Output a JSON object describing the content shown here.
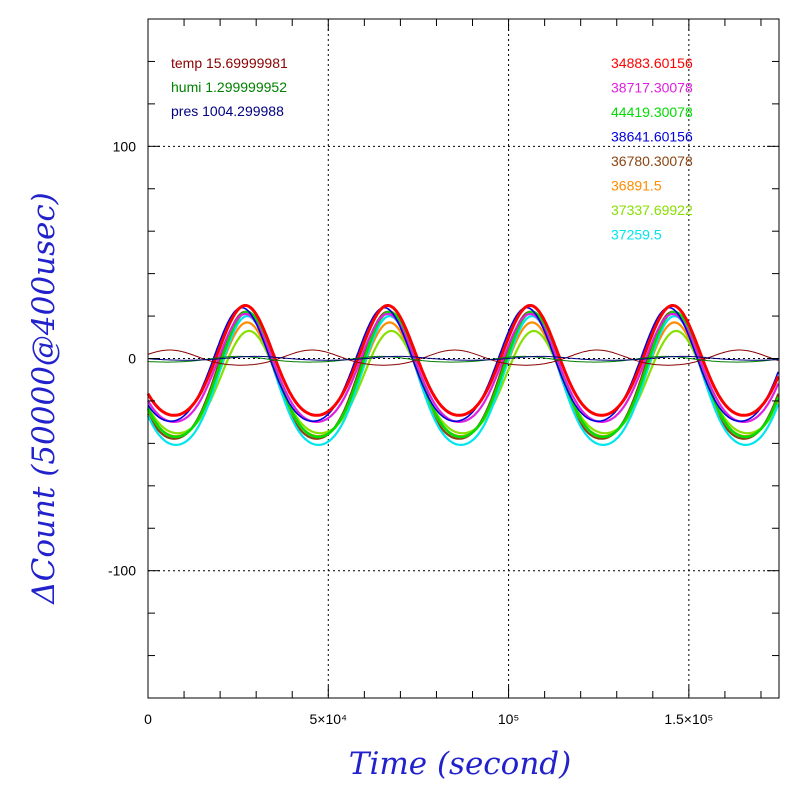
{
  "chart_data": {
    "type": "line",
    "xlabel": "Time (second)",
    "ylabel": "ΔCount (50000@400usec)",
    "xlim": [
      0,
      175000
    ],
    "ylim": [
      -160,
      160
    ],
    "grid": "dotted at labeled ticks",
    "x_tick_labels": [
      {
        "value": 0,
        "label": "0"
      },
      {
        "value": 50000,
        "label": "5×10⁴"
      },
      {
        "value": 100000,
        "label": "10⁵"
      },
      {
        "value": 150000,
        "label": "1.5×10⁵"
      }
    ],
    "y_tick_labels": [
      {
        "value": 100,
        "label": "100"
      },
      {
        "value": 0,
        "label": "0"
      },
      {
        "value": -100,
        "label": "-100"
      }
    ],
    "x_minor_step": 10000,
    "y_minor_step": 20,
    "legend_left": [
      {
        "label": "temp 15.69999981",
        "color": "#8b0000"
      },
      {
        "label": "humi 1.299999952",
        "color": "#008000"
      },
      {
        "label": "pres 1004.299988",
        "color": "#000080"
      }
    ],
    "legend_right": [
      {
        "label": "34883.60156",
        "color": "#ff0000"
      },
      {
        "label": "38717.30078",
        "color": "#e020e0"
      },
      {
        "label": "44419.30078",
        "color": "#00dd00"
      },
      {
        "label": "38641.60156",
        "color": "#0000dd"
      },
      {
        "label": "36780.30078",
        "color": "#8b4513"
      },
      {
        "label": "36891.5",
        "color": "#ff8c00"
      },
      {
        "label": "37337.69922",
        "color": "#88e000"
      },
      {
        "label": "37259.5",
        "color": "#00e5ee"
      }
    ],
    "series": [
      {
        "color": "#8b4513",
        "period": 39500,
        "peak_x": 27000,
        "max": 22,
        "min": -45,
        "width": 2.2
      },
      {
        "color": "#ff8c00",
        "period": 39500,
        "peak_x": 27500,
        "max": 17,
        "min": -43,
        "width": 2.2
      },
      {
        "color": "#88e000",
        "period": 39500,
        "peak_x": 28000,
        "max": 13,
        "min": -41,
        "width": 2.2
      },
      {
        "color": "#00e5ee",
        "period": 39500,
        "peak_x": 27500,
        "max": 20,
        "min": -48,
        "width": 2.2
      },
      {
        "color": "#00dd00",
        "period": 39500,
        "peak_x": 27500,
        "max": 22,
        "min": -44,
        "width": 2.6
      },
      {
        "color": "#e020e0",
        "period": 39500,
        "peak_x": 27000,
        "max": 21,
        "min": -36,
        "width": 2.2
      },
      {
        "color": "#0000dd",
        "period": 39500,
        "peak_x": 26000,
        "max": 24,
        "min": -36,
        "width": 1.6
      },
      {
        "color": "#ff0000",
        "period": 39500,
        "peak_x": 27000,
        "max": 25,
        "min": -33,
        "width": 3.0
      },
      {
        "color": "#8b0000",
        "period": 39500,
        "peak_x": 6000,
        "max": 4,
        "min": -4,
        "width": 1.0
      },
      {
        "color": "#008000",
        "period": 39500,
        "peak_x": 25000,
        "max": 1,
        "min": -2,
        "width": 1.0
      },
      {
        "color": "#000080",
        "period": 39500,
        "peak_x": 30000,
        "max": 1,
        "min": -1,
        "width": 1.0
      }
    ]
  }
}
